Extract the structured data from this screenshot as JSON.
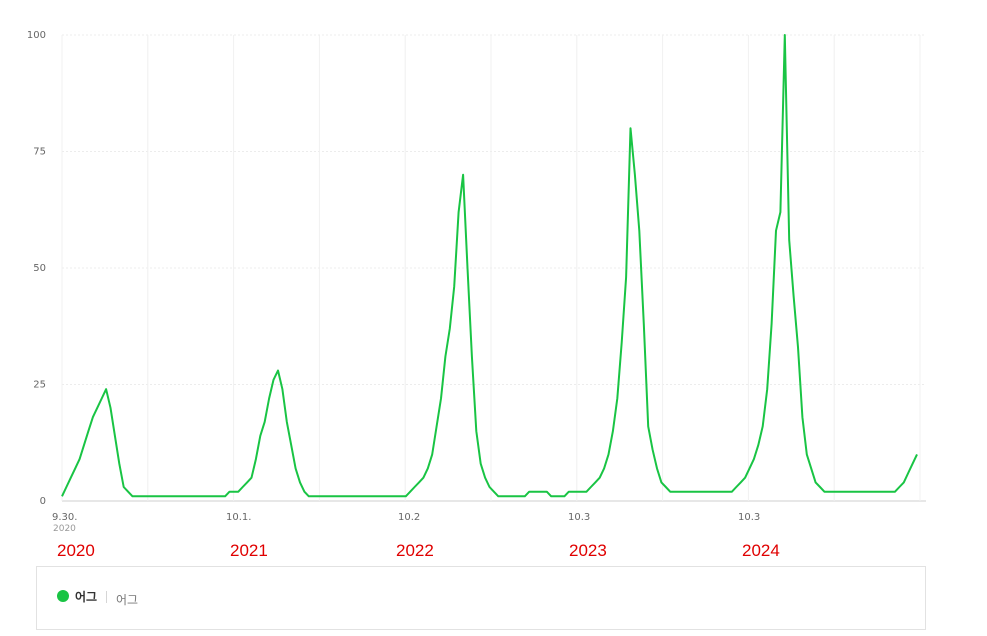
{
  "chart_data": {
    "type": "line",
    "y_ticks": [
      "0",
      "25",
      "50",
      "75",
      "100"
    ],
    "ylim": [
      0,
      100
    ],
    "grid": true,
    "x_ticks": [
      "9.30.",
      "10.1.",
      "10.2",
      "10.3",
      "10.3"
    ],
    "x_tick_note": "2020",
    "annotations": [
      "2020",
      "2021",
      "2022",
      "2023",
      "2024"
    ],
    "series": [
      {
        "name": "어그",
        "color": "#19c444",
        "x_range": [
          "2020-09-30",
          "2025-09-05"
        ],
        "note": "weekly-resolution approximation of daily search index",
        "values": [
          1,
          3,
          5,
          7,
          9,
          12,
          15,
          18,
          20,
          22,
          24,
          20,
          14,
          8,
          3,
          2,
          1,
          1,
          1,
          1,
          1,
          1,
          1,
          1,
          1,
          1,
          1,
          1,
          1,
          1,
          1,
          1,
          1,
          1,
          1,
          1,
          1,
          1,
          2,
          2,
          2,
          3,
          4,
          5,
          9,
          14,
          17,
          22,
          26,
          28,
          24,
          17,
          12,
          7,
          4,
          2,
          1,
          1,
          1,
          1,
          1,
          1,
          1,
          1,
          1,
          1,
          1,
          1,
          1,
          1,
          1,
          1,
          1,
          1,
          1,
          1,
          1,
          1,
          1,
          2,
          3,
          4,
          5,
          7,
          10,
          16,
          22,
          31,
          37,
          46,
          62,
          70,
          50,
          31,
          15,
          8,
          5,
          3,
          2,
          1,
          1,
          1,
          1,
          1,
          1,
          1,
          2,
          2,
          2,
          2,
          2,
          1,
          1,
          1,
          1,
          2,
          2,
          2,
          2,
          2,
          3,
          4,
          5,
          7,
          10,
          15,
          22,
          34,
          48,
          80,
          70,
          58,
          38,
          16,
          11,
          7,
          4,
          3,
          2,
          2,
          2,
          2,
          2,
          2,
          2,
          2,
          2,
          2,
          2,
          2,
          2,
          2,
          2,
          3,
          4,
          5,
          7,
          9,
          12,
          16,
          24,
          38,
          58,
          62,
          100,
          56,
          44,
          33,
          18,
          10,
          7,
          4,
          3,
          2,
          2,
          2,
          2,
          2,
          2,
          2,
          2,
          2,
          2,
          2,
          2,
          2,
          2,
          2,
          2,
          2,
          3,
          4,
          6,
          8,
          10
        ]
      }
    ]
  },
  "legend": {
    "series_name": "어그",
    "sub_label": "어그"
  }
}
